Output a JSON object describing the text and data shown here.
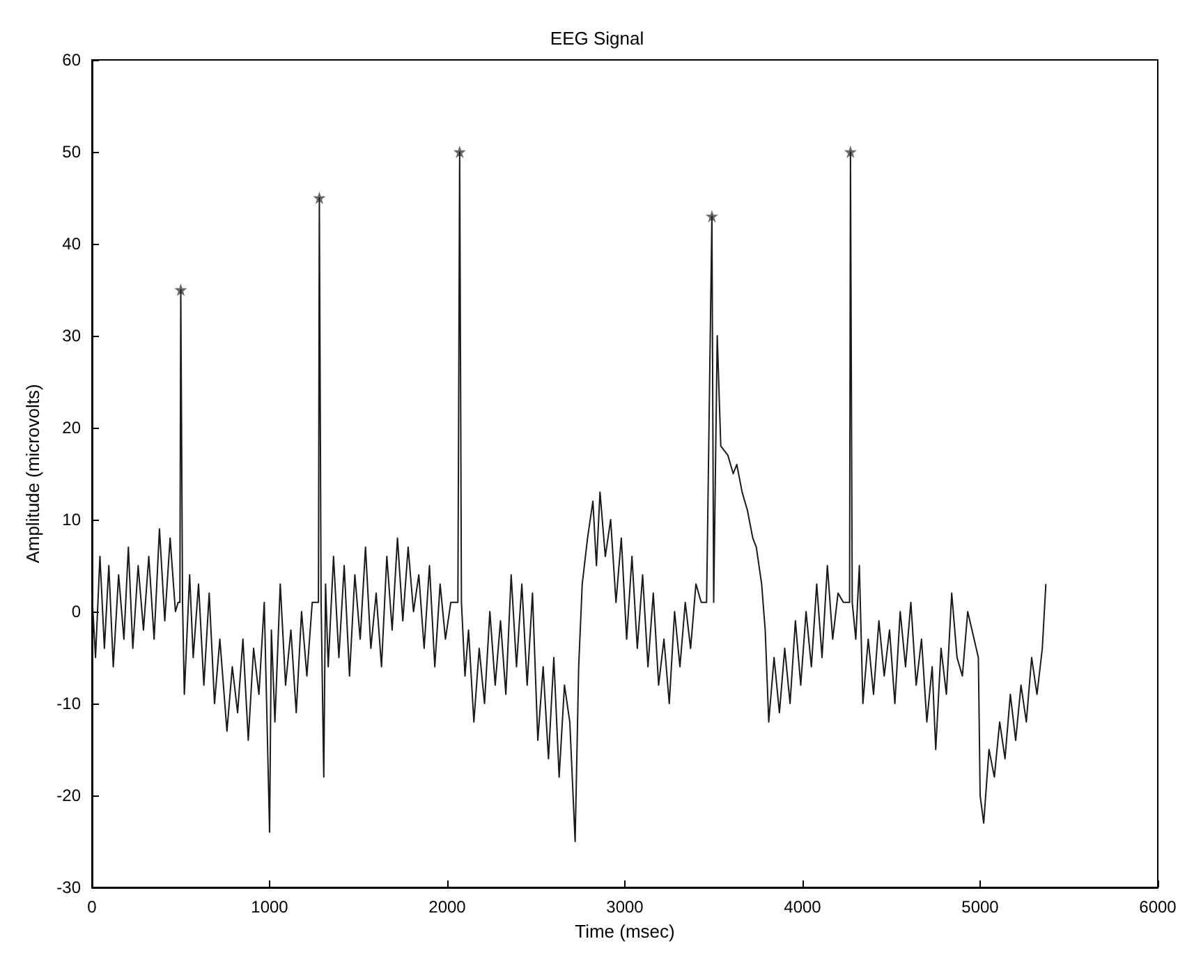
{
  "chart_data": {
    "type": "line",
    "title": "EEG Signal",
    "xlabel": "Time (msec)",
    "ylabel": "Amplitude (microvolts)",
    "xlim": [
      0,
      6000
    ],
    "xticks": [
      0,
      1000,
      2000,
      3000,
      4000,
      5000,
      6000
    ],
    "ylim": [
      -30,
      60
    ],
    "yticks": [
      -30,
      -20,
      -10,
      0,
      10,
      20,
      30,
      40,
      50,
      60
    ],
    "grid": false,
    "series": [
      {
        "color": "#1a1a1a",
        "marker": "none",
        "x": [
          0,
          20,
          45,
          70,
          95,
          120,
          150,
          180,
          205,
          230,
          260,
          290,
          320,
          350,
          380,
          410,
          440,
          470,
          485,
          495,
          500,
          510,
          520,
          550,
          570,
          600,
          630,
          660,
          690,
          720,
          760,
          790,
          820,
          850,
          880,
          910,
          940,
          970,
          1000,
          1010,
          1030,
          1060,
          1090,
          1120,
          1150,
          1180,
          1210,
          1240,
          1265,
          1275,
          1280,
          1290,
          1305,
          1315,
          1330,
          1360,
          1390,
          1420,
          1450,
          1480,
          1510,
          1540,
          1570,
          1600,
          1630,
          1660,
          1690,
          1720,
          1750,
          1780,
          1810,
          1840,
          1870,
          1900,
          1930,
          1960,
          1990,
          2020,
          2040,
          2060,
          2070,
          2080,
          2100,
          2120,
          2150,
          2180,
          2210,
          2240,
          2270,
          2300,
          2330,
          2360,
          2390,
          2420,
          2450,
          2480,
          2510,
          2540,
          2570,
          2600,
          2630,
          2660,
          2690,
          2720,
          2740,
          2760,
          2790,
          2820,
          2840,
          2860,
          2890,
          2920,
          2950,
          2980,
          3010,
          3040,
          3070,
          3100,
          3130,
          3160,
          3190,
          3220,
          3250,
          3280,
          3310,
          3340,
          3370,
          3400,
          3430,
          3460,
          3490,
          3500,
          3520,
          3540,
          3580,
          3610,
          3630,
          3660,
          3690,
          3720,
          3740,
          3770,
          3790,
          3810,
          3840,
          3870,
          3900,
          3930,
          3960,
          3990,
          4020,
          4050,
          4080,
          4110,
          4140,
          4170,
          4200,
          4230,
          4250,
          4265,
          4270,
          4280,
          4300,
          4320,
          4340,
          4370,
          4400,
          4430,
          4460,
          4490,
          4520,
          4550,
          4580,
          4610,
          4640,
          4670,
          4700,
          4730,
          4750,
          4780,
          4810,
          4840,
          4870,
          4900,
          4930,
          4990,
          5000,
          5020,
          5050,
          5080,
          5110,
          5140,
          5170,
          5200,
          5230,
          5260,
          5290,
          5320,
          5350,
          5370
        ],
        "values": [
          2,
          -5,
          6,
          -4,
          5,
          -6,
          4,
          -3,
          7,
          -4,
          5,
          -2,
          6,
          -3,
          9,
          -1,
          8,
          0,
          1,
          1,
          35,
          1,
          -9,
          4,
          -5,
          3,
          -8,
          2,
          -10,
          -3,
          -13,
          -6,
          -11,
          -3,
          -14,
          -4,
          -9,
          1,
          -24,
          -2,
          -12,
          3,
          -8,
          -2,
          -11,
          0,
          -7,
          1,
          1,
          1,
          45,
          1,
          -18,
          3,
          -6,
          6,
          -5,
          5,
          -7,
          4,
          -3,
          7,
          -4,
          2,
          -6,
          6,
          -2,
          8,
          -1,
          7,
          0,
          4,
          -4,
          5,
          -6,
          3,
          -3,
          1,
          1,
          1,
          50,
          1,
          -7,
          -2,
          -12,
          -4,
          -10,
          0,
          -8,
          -1,
          -9,
          4,
          -6,
          3,
          -8,
          2,
          -14,
          -6,
          -16,
          -5,
          -18,
          -8,
          -12,
          -25,
          -6,
          3,
          8,
          12,
          5,
          13,
          6,
          10,
          1,
          8,
          -3,
          6,
          -4,
          4,
          -6,
          2,
          -8,
          -3,
          -10,
          0,
          -6,
          1,
          -4,
          3,
          1,
          1,
          43,
          1,
          30,
          18,
          17,
          15,
          16,
          13,
          11,
          8,
          7,
          3,
          -2,
          -12,
          -5,
          -11,
          -4,
          -10,
          -1,
          -8,
          0,
          -6,
          3,
          -5,
          5,
          -3,
          2,
          1,
          1,
          1,
          50,
          1,
          -3,
          5,
          -10,
          -3,
          -9,
          -1,
          -7,
          -2,
          -10,
          0,
          -6,
          1,
          -8,
          -3,
          -12,
          -6,
          -15,
          -4,
          -9,
          2,
          -5,
          -7,
          0,
          -5,
          -20,
          -23,
          -15,
          -18,
          -12,
          -16,
          -9,
          -14,
          -8,
          -12,
          -5,
          -9,
          -4,
          3
        ]
      },
      {
        "type": "scatter",
        "color": "#444444",
        "marker": "star",
        "x": [
          500,
          1280,
          2070,
          3490,
          4270
        ],
        "values": [
          35,
          45,
          50,
          43,
          50
        ]
      }
    ]
  }
}
